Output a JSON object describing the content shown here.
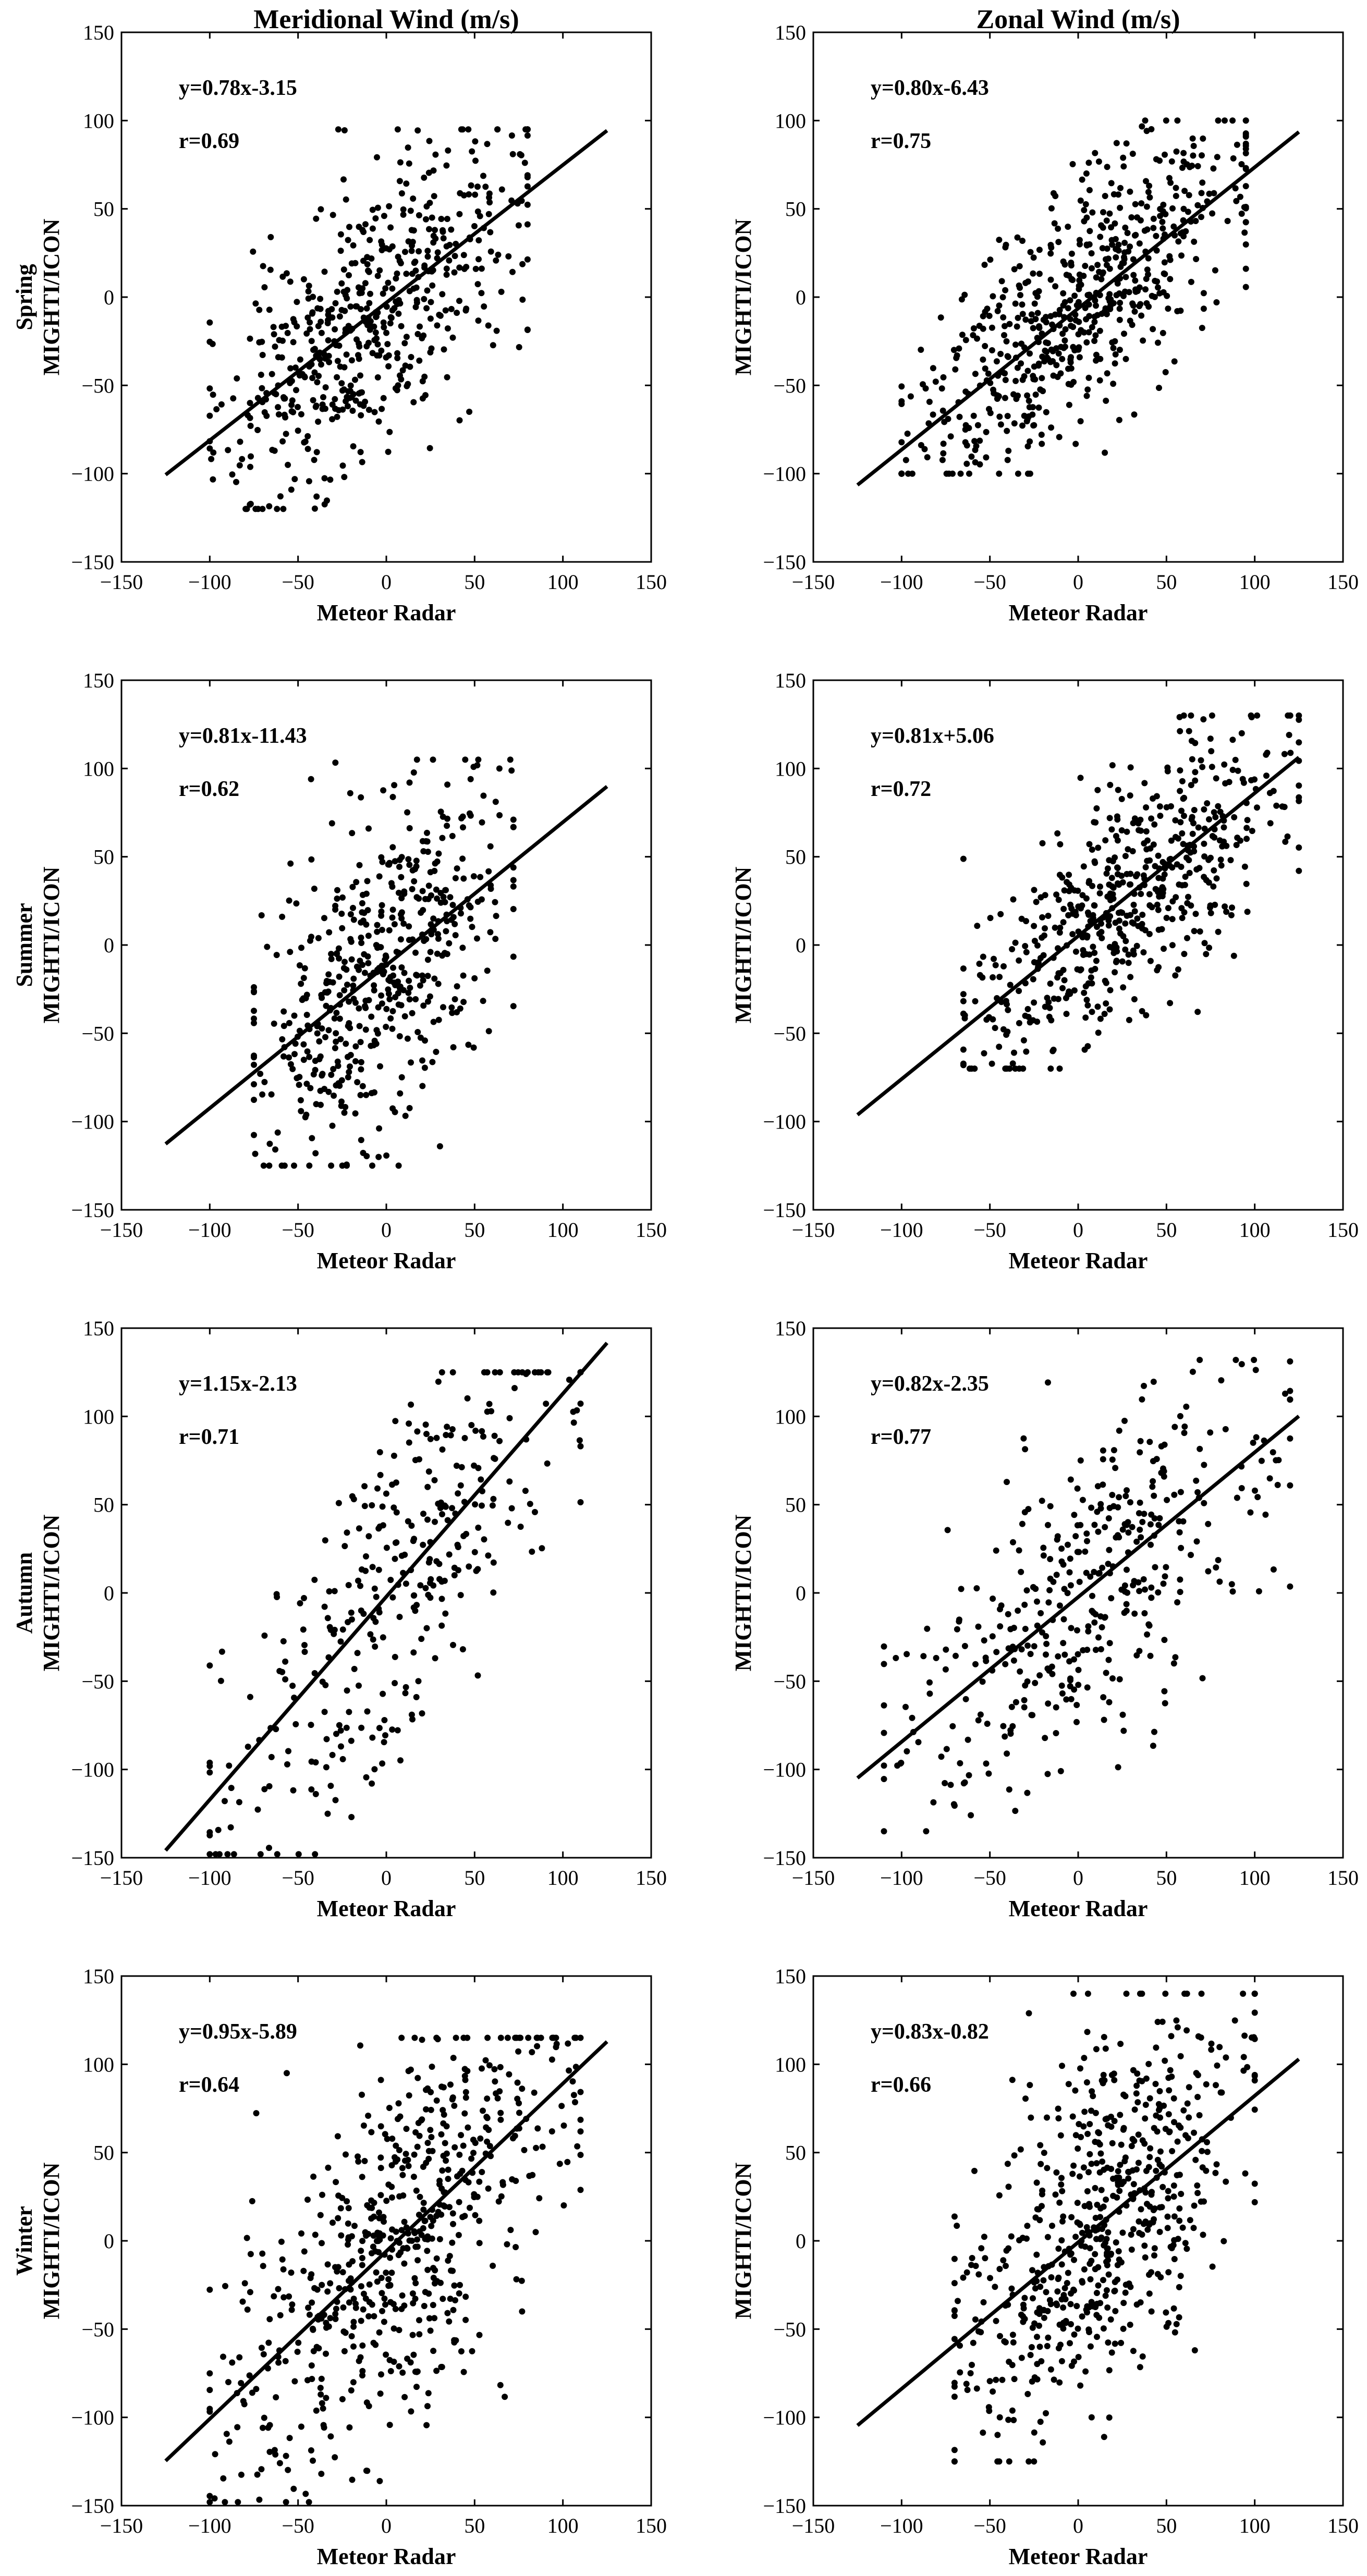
{
  "figure": {
    "columns": [
      "Meridional Wind (m/s)",
      "Zonal Wind (m/s)"
    ],
    "rows": [
      {
        "season": "Spring",
        "ylabel": "MIGHTI/ICON"
      },
      {
        "season": "Summer",
        "ylabel": "MIGHTI/ICON"
      },
      {
        "season": "Autumn",
        "ylabel": "MIGHTI/ICON"
      },
      {
        "season": "Winter",
        "ylabel": "MIGHTI/ICON"
      }
    ],
    "xlabel": "Meteor Radar",
    "colors": {
      "points": "#000000",
      "fit": "#000000",
      "axes": "#000000"
    }
  },
  "chart_data": [
    {
      "type": "scatter",
      "panel": "spring-meridional",
      "xlabel": "Meteor Radar",
      "ylabel": "MIGHTI/ICON",
      "xlim": [
        -150,
        150
      ],
      "ylim": [
        -150,
        150
      ],
      "xticks": [
        -150,
        -100,
        -50,
        0,
        50,
        100,
        150
      ],
      "yticks": [
        -150,
        -100,
        -50,
        0,
        50,
        100,
        150
      ],
      "equation": "y=0.78x-3.15",
      "r_label": "r=0.69",
      "fit": {
        "slope": 0.78,
        "intercept": -3.15,
        "x_range": [
          -125,
          125
        ]
      },
      "scatter": {
        "n": 560,
        "x_range": [
          -100,
          80
        ],
        "y_range": [
          -120,
          95
        ],
        "seed": 11
      }
    },
    {
      "type": "scatter",
      "panel": "spring-zonal",
      "xlabel": "Meteor Radar",
      "ylabel": "MIGHTI/ICON",
      "xlim": [
        -150,
        150
      ],
      "ylim": [
        -150,
        150
      ],
      "xticks": [
        -150,
        -100,
        -50,
        0,
        50,
        100,
        150
      ],
      "yticks": [
        -150,
        -100,
        -50,
        0,
        50,
        100,
        150
      ],
      "equation": "y=0.80x-6.43",
      "r_label": "r=0.75",
      "fit": {
        "slope": 0.8,
        "intercept": -6.43,
        "x_range": [
          -125,
          125
        ]
      },
      "scatter": {
        "n": 620,
        "x_range": [
          -100,
          95
        ],
        "y_range": [
          -100,
          100
        ],
        "seed": 23
      }
    },
    {
      "type": "scatter",
      "panel": "summer-meridional",
      "xlabel": "Meteor Radar",
      "ylabel": "MIGHTI/ICON",
      "xlim": [
        -150,
        150
      ],
      "ylim": [
        -150,
        150
      ],
      "xticks": [
        -150,
        -100,
        -50,
        0,
        50,
        100,
        150
      ],
      "yticks": [
        -150,
        -100,
        -50,
        0,
        50,
        100,
        150
      ],
      "equation": "y=0.81x-11.43",
      "r_label": "r=0.62",
      "fit": {
        "slope": 0.81,
        "intercept": -11.43,
        "x_range": [
          -125,
          125
        ]
      },
      "scatter": {
        "n": 520,
        "x_range": [
          -75,
          72
        ],
        "y_range": [
          -125,
          105
        ],
        "seed": 37
      }
    },
    {
      "type": "scatter",
      "panel": "summer-zonal",
      "xlabel": "Meteor Radar",
      "ylabel": "MIGHTI/ICON",
      "xlim": [
        -150,
        150
      ],
      "ylim": [
        -150,
        150
      ],
      "xticks": [
        -150,
        -100,
        -50,
        0,
        50,
        100,
        150
      ],
      "yticks": [
        -150,
        -100,
        -50,
        0,
        50,
        100,
        150
      ],
      "equation": "y=0.81x+5.06",
      "r_label": "r=0.72",
      "fit": {
        "slope": 0.81,
        "intercept": 5.06,
        "x_range": [
          -125,
          125
        ]
      },
      "scatter": {
        "n": 560,
        "x_range": [
          -65,
          125
        ],
        "y_range": [
          -70,
          130
        ],
        "seed": 41
      }
    },
    {
      "type": "scatter",
      "panel": "autumn-meridional",
      "xlabel": "Meteor Radar",
      "ylabel": "MIGHTI/ICON",
      "xlim": [
        -150,
        150
      ],
      "ylim": [
        -150,
        150
      ],
      "xticks": [
        -150,
        -100,
        -50,
        0,
        50,
        100,
        150
      ],
      "yticks": [
        -150,
        -100,
        -50,
        0,
        50,
        100,
        150
      ],
      "equation": "y=1.15x-2.13",
      "r_label": "r=0.71",
      "fit": {
        "slope": 1.15,
        "intercept": -2.13,
        "x_range": [
          -125,
          125
        ]
      },
      "scatter": {
        "n": 330,
        "x_range": [
          -100,
          110
        ],
        "y_range": [
          -148,
          125
        ],
        "seed": 53
      }
    },
    {
      "type": "scatter",
      "panel": "autumn-zonal",
      "xlabel": "Meteor Radar",
      "ylabel": "MIGHTI/ICON",
      "xlim": [
        -150,
        150
      ],
      "ylim": [
        -150,
        150
      ],
      "xticks": [
        -150,
        -100,
        -50,
        0,
        50,
        100,
        150
      ],
      "yticks": [
        -150,
        -100,
        -50,
        0,
        50,
        100,
        150
      ],
      "equation": "y=0.82x-2.35",
      "r_label": "r=0.77",
      "fit": {
        "slope": 0.82,
        "intercept": -2.35,
        "x_range": [
          -125,
          125
        ]
      },
      "scatter": {
        "n": 400,
        "x_range": [
          -110,
          120
        ],
        "y_range": [
          -135,
          132
        ],
        "seed": 67
      }
    },
    {
      "type": "scatter",
      "panel": "winter-meridional",
      "xlabel": "Meteor Radar",
      "ylabel": "MIGHTI/ICON",
      "xlim": [
        -150,
        150
      ],
      "ylim": [
        -150,
        150
      ],
      "xticks": [
        -150,
        -100,
        -50,
        0,
        50,
        100,
        150
      ],
      "yticks": [
        -150,
        -100,
        -50,
        0,
        50,
        100,
        150
      ],
      "equation": "y=0.95x-5.89",
      "r_label": "r=0.64",
      "fit": {
        "slope": 0.95,
        "intercept": -5.89,
        "x_range": [
          -125,
          125
        ]
      },
      "scatter": {
        "n": 620,
        "x_range": [
          -100,
          110
        ],
        "y_range": [
          -148,
          115
        ],
        "seed": 79
      }
    },
    {
      "type": "scatter",
      "panel": "winter-zonal",
      "xlabel": "Meteor Radar",
      "ylabel": "MIGHTI/ICON",
      "xlim": [
        -150,
        150
      ],
      "ylim": [
        -150,
        150
      ],
      "xticks": [
        -150,
        -100,
        -50,
        0,
        50,
        100,
        150
      ],
      "yticks": [
        -150,
        -100,
        -50,
        0,
        50,
        100,
        150
      ],
      "equation": "y=0.83x-0.82",
      "r_label": "r=0.66",
      "fit": {
        "slope": 0.83,
        "intercept": -0.82,
        "x_range": [
          -125,
          125
        ]
      },
      "scatter": {
        "n": 620,
        "x_range": [
          -70,
          100
        ],
        "y_range": [
          -125,
          140
        ],
        "seed": 97
      }
    }
  ]
}
